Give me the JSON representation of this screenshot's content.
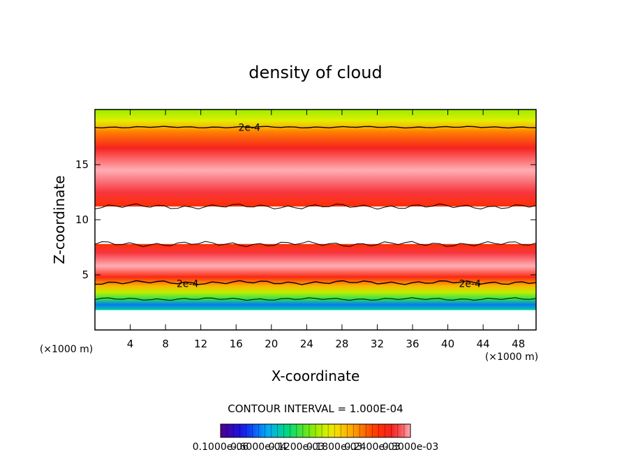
{
  "chart_data": {
    "type": "heatmap",
    "title": "density of cloud",
    "xlabel": "X-coordinate",
    "ylabel": "Z-coordinate",
    "x_unit": "(×1000 m)",
    "y_unit": "(×1000 m)",
    "xlim": [
      0,
      50
    ],
    "ylim": [
      0,
      20
    ],
    "x_ticks": [
      4,
      8,
      12,
      16,
      20,
      24,
      28,
      32,
      36,
      40,
      44,
      48
    ],
    "y_ticks": [
      5,
      10,
      15
    ],
    "contour_interval_text": "CONTOUR INTERVAL = 1.000E-04",
    "contour_labels": [
      {
        "text": "2e-4",
        "x": 17.5,
        "z": 18.4
      },
      {
        "text": "2e-4",
        "x": 10.5,
        "z": 4.2
      },
      {
        "text": "2e-4",
        "x": 42.5,
        "z": 4.2
      }
    ],
    "contours": {
      "upper_2e4_z": 18.4,
      "cloud_gap_top_z": 11.2,
      "cloud_gap_bottom_z": 7.8,
      "lower_2e4_z": 4.3,
      "lower_extra_z": 2.8
    },
    "vertical_profile": [
      {
        "z": 0.0,
        "value": null
      },
      {
        "z": 1.5,
        "value": null
      },
      {
        "z": 1.8,
        "value": 0.0001
      },
      {
        "z": 2.3,
        "value": 6e-05
      },
      {
        "z": 2.8,
        "value": 0.00012
      },
      {
        "z": 3.4,
        "value": 0.00016
      },
      {
        "z": 4.0,
        "value": 0.0002
      },
      {
        "z": 4.8,
        "value": 0.00026
      },
      {
        "z": 5.8,
        "value": 0.0003
      },
      {
        "z": 7.0,
        "value": 0.00028
      },
      {
        "z": 7.8,
        "value": 0.00025
      },
      {
        "z": 8.0,
        "value": null
      },
      {
        "z": 11.0,
        "value": null
      },
      {
        "z": 11.2,
        "value": 0.00025
      },
      {
        "z": 12.5,
        "value": 0.00028
      },
      {
        "z": 14.5,
        "value": 0.0003
      },
      {
        "z": 16.5,
        "value": 0.00027
      },
      {
        "z": 18.0,
        "value": 0.00022
      },
      {
        "z": 18.4,
        "value": 0.0002
      },
      {
        "z": 19.0,
        "value": 0.00017
      },
      {
        "z": 20.0,
        "value": 0.00015
      }
    ],
    "colorbar": {
      "labels": [
        "0.1000e-06",
        "0.6000e-04",
        "0.1200e-03",
        "0.1800e-03",
        "0.2400e-03",
        "0.3000e-03"
      ],
      "range": [
        1e-07,
        0.0003
      ]
    },
    "grid": false
  }
}
